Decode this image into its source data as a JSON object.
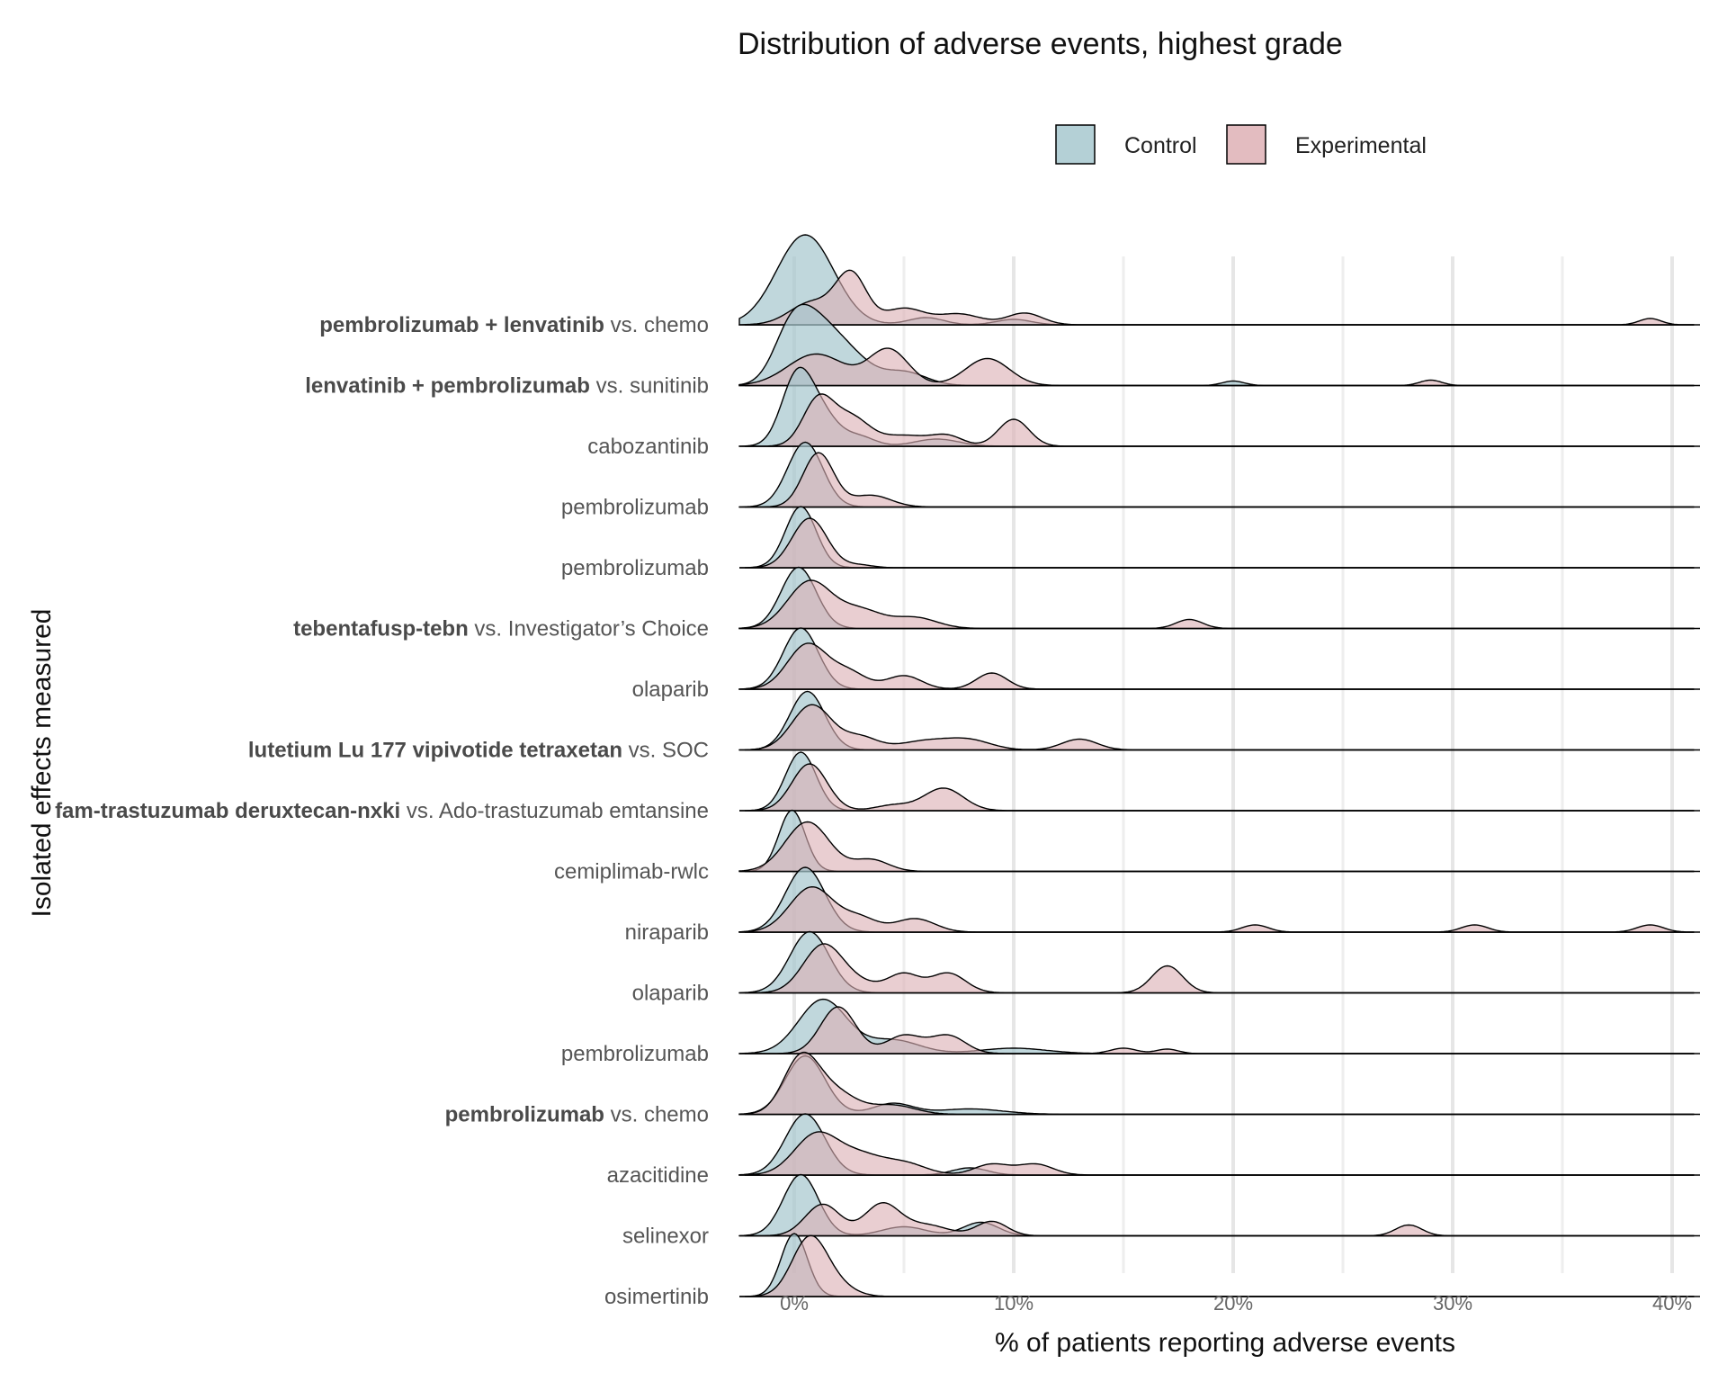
{
  "chart_data": {
    "type": "area",
    "subtype": "ridgeline-density",
    "title": "Distribution of adverse events, highest grade",
    "xlabel": "% of patients reporting adverse events",
    "ylabel": "Isolated effects measured",
    "xlim": [
      -2.5,
      41
    ],
    "x_ticks": [
      0,
      10,
      20,
      30,
      40
    ],
    "x_tick_labels": [
      "0%",
      "10%",
      "20%",
      "30%",
      "40%"
    ],
    "grid": true,
    "legend": {
      "position": "top",
      "entries": [
        {
          "name": "Control",
          "color": "#b4d0d6"
        },
        {
          "name": "Experimental",
          "color": "#e3bcc0"
        }
      ]
    },
    "colors": {
      "control": "#a8c7cf",
      "experimental": "#dcb0b5",
      "overlap": "#a38f93"
    },
    "rows": [
      {
        "bold": "pembrolizumab + lenvatinib",
        "rest": " vs. chemo",
        "control": [
          [
            0.5,
            1.0,
            1.3
          ],
          [
            6,
            0.08,
            0.8
          ],
          [
            10,
            0.06,
            0.8
          ]
        ],
        "experimental": [
          [
            0.8,
            0.25,
            1.0
          ],
          [
            2.6,
            0.55,
            0.7
          ],
          [
            5,
            0.18,
            0.9
          ],
          [
            7.5,
            0.12,
            1.0
          ],
          [
            10.5,
            0.13,
            0.8
          ],
          [
            39,
            0.07,
            0.5
          ]
        ]
      },
      {
        "bold": "lenvatinib + pembrolizumab",
        "rest": " vs. sunitinib",
        "control": [
          [
            -0.2,
            0.45,
            0.8
          ],
          [
            0.9,
            0.6,
            1.0
          ],
          [
            2.5,
            0.3,
            1.0
          ],
          [
            5,
            0.15,
            1.0
          ],
          [
            20,
            0.05,
            0.5
          ]
        ],
        "experimental": [
          [
            1,
            0.35,
            1.3
          ],
          [
            4.3,
            0.4,
            0.9
          ],
          [
            8.8,
            0.3,
            1.0
          ],
          [
            29,
            0.06,
            0.5
          ]
        ]
      },
      {
        "bold": "",
        "rest": "cabozantinib",
        "control": [
          [
            0.1,
            0.72,
            0.7
          ],
          [
            1.2,
            0.35,
            0.8
          ],
          [
            3,
            0.1,
            0.7
          ],
          [
            6.5,
            0.08,
            1.0
          ]
        ],
        "experimental": [
          [
            1.1,
            0.52,
            0.7
          ],
          [
            2.6,
            0.3,
            0.8
          ],
          [
            5,
            0.12,
            1.2
          ],
          [
            7,
            0.1,
            0.7
          ],
          [
            10,
            0.3,
            0.7
          ]
        ]
      },
      {
        "bold": "",
        "rest": "pembrolizumab",
        "control": [
          [
            0.5,
            0.72,
            0.8
          ]
        ],
        "experimental": [
          [
            1.1,
            0.6,
            0.7
          ],
          [
            3.5,
            0.13,
            0.9
          ]
        ]
      },
      {
        "bold": "",
        "rest": "pembrolizumab",
        "control": [
          [
            0.3,
            0.68,
            0.7
          ]
        ],
        "experimental": [
          [
            0.7,
            0.55,
            0.8
          ],
          [
            3,
            0.03,
            0.6
          ]
        ]
      },
      {
        "bold": "tebentafusp-tebn",
        "rest": " vs. Investigator’s Choice",
        "control": [
          [
            0.2,
            0.68,
            0.8
          ]
        ],
        "experimental": [
          [
            0.7,
            0.52,
            1.0
          ],
          [
            3,
            0.2,
            1.0
          ],
          [
            5.5,
            0.12,
            1.0
          ],
          [
            18,
            0.1,
            0.6
          ]
        ]
      },
      {
        "bold": "",
        "rest": "olaparib",
        "control": [
          [
            0.3,
            0.68,
            0.8
          ]
        ],
        "experimental": [
          [
            0.6,
            0.5,
            0.9
          ],
          [
            2.5,
            0.18,
            0.8
          ],
          [
            5,
            0.15,
            0.8
          ],
          [
            9,
            0.18,
            0.7
          ]
        ]
      },
      {
        "bold": "lutetium Lu 177 vipivotide tetraxetan",
        "rest": " vs. SOC",
        "control": [
          [
            0.6,
            0.65,
            0.8
          ]
        ],
        "experimental": [
          [
            0.8,
            0.5,
            0.9
          ],
          [
            3,
            0.14,
            0.8
          ],
          [
            6,
            0.1,
            1.2
          ],
          [
            8,
            0.1,
            1.0
          ],
          [
            13,
            0.12,
            0.8
          ]
        ]
      },
      {
        "bold": "fam-trastuzumab deruxtecan-nxki",
        "rest": " vs. Ado-trastuzumab emtansine",
        "control": [
          [
            0.3,
            0.65,
            0.7
          ]
        ],
        "experimental": [
          [
            0.7,
            0.52,
            0.8
          ],
          [
            6.8,
            0.25,
            0.9
          ],
          [
            4.5,
            0.06,
            0.8
          ]
        ]
      },
      {
        "bold": "",
        "rest": "cemiplimab-rwlc",
        "control": [
          [
            -0.1,
            0.68,
            0.6
          ]
        ],
        "experimental": [
          [
            0.6,
            0.55,
            1.0
          ],
          [
            3.5,
            0.13,
            0.8
          ]
        ]
      },
      {
        "bold": "",
        "rest": "niraparib",
        "control": [
          [
            0.5,
            0.72,
            0.9
          ]
        ],
        "experimental": [
          [
            0.8,
            0.5,
            1.0
          ],
          [
            3,
            0.15,
            0.8
          ],
          [
            5.5,
            0.15,
            0.9
          ],
          [
            21,
            0.08,
            0.6
          ],
          [
            31,
            0.08,
            0.6
          ],
          [
            39,
            0.08,
            0.6
          ]
        ]
      },
      {
        "bold": "",
        "rest": "olaparib",
        "control": [
          [
            0.7,
            0.68,
            0.9
          ]
        ],
        "experimental": [
          [
            1.3,
            0.52,
            0.9
          ],
          [
            3,
            0.1,
            1.0
          ],
          [
            5,
            0.2,
            0.7
          ],
          [
            7,
            0.22,
            0.8
          ],
          [
            17,
            0.3,
            0.7
          ]
        ]
      },
      {
        "bold": "",
        "rest": "pembrolizumab",
        "rest_bold_first": true,
        "control": [
          [
            1.3,
            0.6,
            1.1
          ],
          [
            4.5,
            0.15,
            1.2
          ],
          [
            10,
            0.06,
            1.5
          ]
        ],
        "experimental": [
          [
            2,
            0.52,
            0.8
          ],
          [
            5,
            0.2,
            0.8
          ],
          [
            7,
            0.2,
            0.8
          ],
          [
            15,
            0.06,
            0.6
          ],
          [
            17,
            0.05,
            0.5
          ]
        ]
      },
      {
        "bold": "pembrolizumab",
        "rest": " vs. chemo",
        "control": [
          [
            0.5,
            0.65,
            0.9
          ],
          [
            4.5,
            0.12,
            0.9
          ],
          [
            8,
            0.06,
            1.5
          ]
        ],
        "experimental": [
          [
            0.3,
            0.6,
            0.8
          ],
          [
            1.8,
            0.25,
            1.0
          ],
          [
            4.5,
            0.1,
            1.0
          ]
        ]
      },
      {
        "bold": "",
        "rest": "azacitidine",
        "control": [
          [
            0.5,
            0.68,
            0.9
          ],
          [
            8,
            0.08,
            0.8
          ]
        ],
        "experimental": [
          [
            1,
            0.45,
            1.0
          ],
          [
            3,
            0.2,
            1.0
          ],
          [
            5,
            0.13,
            1.0
          ],
          [
            9,
            0.12,
            0.8
          ],
          [
            11,
            0.12,
            0.8
          ]
        ]
      },
      {
        "bold": "",
        "rest": "selinexor",
        "control": [
          [
            0.3,
            0.68,
            0.8
          ],
          [
            5,
            0.1,
            1.0
          ],
          [
            8.5,
            0.15,
            0.8
          ]
        ],
        "experimental": [
          [
            1.3,
            0.35,
            0.8
          ],
          [
            4,
            0.35,
            0.8
          ],
          [
            6,
            0.12,
            1.0
          ],
          [
            9,
            0.16,
            0.7
          ],
          [
            28,
            0.12,
            0.6
          ]
        ]
      },
      {
        "bold": "",
        "rest": "osimertinib",
        "control": [
          [
            0,
            0.7,
            0.6
          ]
        ],
        "experimental": [
          [
            0.7,
            0.65,
            0.8
          ],
          [
            2,
            0.1,
            0.8
          ]
        ]
      }
    ]
  }
}
